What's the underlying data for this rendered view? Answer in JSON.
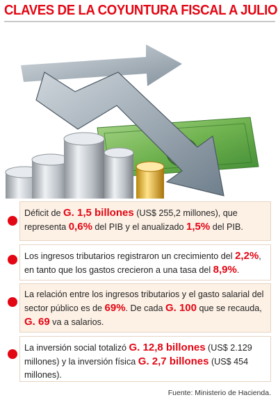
{
  "title": "CLAVES DE LA COYUNTURA FISCAL A JULIO",
  "items": [
    {
      "parts": [
        {
          "t": "Déficit de ",
          "hl": false
        },
        {
          "t": "G. 1,5 billones",
          "hl": true
        },
        {
          "t": " (US$ 255,2 millones),  que representa ",
          "hl": false
        },
        {
          "t": "0,6%",
          "hl": true
        },
        {
          "t": " del PIB y el anualizado ",
          "hl": false
        },
        {
          "t": "1,5%",
          "hl": true
        },
        {
          "t": " del PIB.",
          "hl": false
        }
      ]
    },
    {
      "parts": [
        {
          "t": "Los ingresos tributarios registraron un crecimiento del ",
          "hl": false
        },
        {
          "t": "2,2%",
          "hl": true
        },
        {
          "t": ", en tanto que los gastos crecieron a una tasa del ",
          "hl": false
        },
        {
          "t": "8,9%",
          "hl": true
        },
        {
          "t": ".",
          "hl": false
        }
      ]
    },
    {
      "parts": [
        {
          "t": "La relación entre los ingresos tributarios y el gasto salarial del sector público es de ",
          "hl": false
        },
        {
          "t": "69%",
          "hl": true
        },
        {
          "t": ". De cada ",
          "hl": false
        },
        {
          "t": "G. 100",
          "hl": true
        },
        {
          "t": " que se recauda, ",
          "hl": false
        },
        {
          "t": "G. 69",
          "hl": true
        },
        {
          "t": " va a salarios.",
          "hl": false
        }
      ]
    },
    {
      "parts": [
        {
          "t": "La inversión social totalizó ",
          "hl": false
        },
        {
          "t": "G. 12,8 billones",
          "hl": true
        },
        {
          "t": " (US$ 2.129 millones) y la inversión física ",
          "hl": false
        },
        {
          "t": "G. 2,7 billones",
          "hl": true
        },
        {
          "t": " (US$ 454 millones).",
          "hl": false
        }
      ]
    }
  ],
  "source": "Fuente: Ministerio de Hacienda.",
  "colors": {
    "accent": "#e30613",
    "box_tint": "#fdf1e6",
    "money_green": "#5fa845",
    "arrow_gray": "#8a9aa6"
  }
}
